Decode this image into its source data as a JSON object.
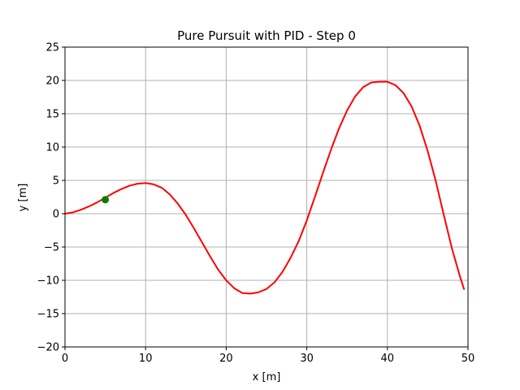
{
  "chart_data": {
    "type": "line",
    "title": "Pure Pursuit with PID - Step 0",
    "xlabel": "x [m]",
    "ylabel": "y [m]",
    "xlim": [
      0,
      50
    ],
    "ylim": [
      -20,
      25
    ],
    "xticks": [
      0,
      10,
      20,
      30,
      40,
      50
    ],
    "yticks": [
      -20,
      -15,
      -10,
      -5,
      0,
      5,
      10,
      15,
      20,
      25
    ],
    "grid": true,
    "series": [
      {
        "color": "#ff0000",
        "x": [
          0,
          1,
          2,
          3,
          4,
          5,
          6,
          7,
          8,
          9,
          10,
          11,
          12,
          13,
          14,
          15,
          16,
          17,
          18,
          19,
          20,
          21,
          22,
          23,
          24,
          25,
          26,
          27,
          28,
          29,
          30,
          31,
          32,
          33,
          34,
          35,
          36,
          37,
          38,
          39,
          40,
          41,
          42,
          43,
          44,
          45,
          46,
          47,
          48,
          49,
          49.5
        ],
        "y": [
          0,
          0.2,
          0.6,
          1.1,
          1.7,
          2.4,
          3.1,
          3.7,
          4.2,
          4.5,
          4.6,
          4.4,
          3.9,
          2.9,
          1.5,
          -0.2,
          -2.2,
          -4.3,
          -6.4,
          -8.4,
          -10.0,
          -11.2,
          -11.9,
          -12.0,
          -11.8,
          -11.3,
          -10.3,
          -8.7,
          -6.6,
          -4.1,
          -1.0,
          2.5,
          6.1,
          9.6,
          12.8,
          15.5,
          17.6,
          19.0,
          19.7,
          19.8,
          19.8,
          19.3,
          18.1,
          16.1,
          13.2,
          9.4,
          4.9,
          -0.2,
          -5.2,
          -9.4,
          -11.3
        ]
      }
    ],
    "markers": [
      {
        "color": "#008000",
        "x": 5,
        "y": 2.1
      }
    ]
  }
}
